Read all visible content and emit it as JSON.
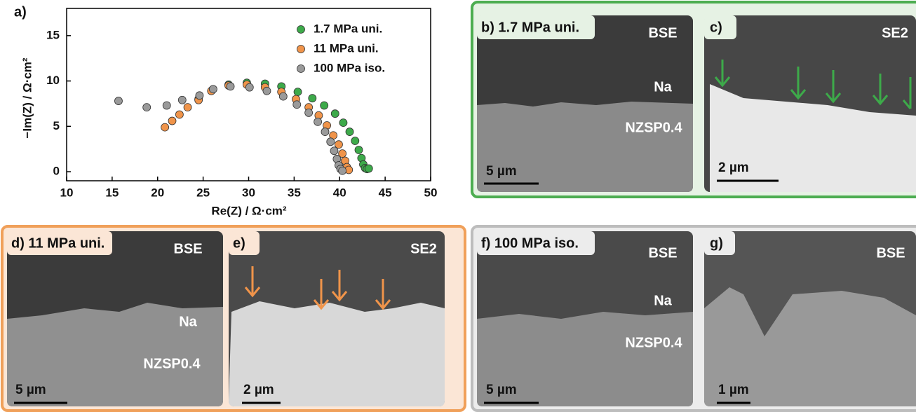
{
  "chart_data": {
    "type": "scatter",
    "panel_label": "a)",
    "x_label": "Re(Z) / Ω·cm²",
    "y_label": "−Im(Z) / Ω·cm²",
    "xlim": [
      10,
      50
    ],
    "xticks": [
      10,
      15,
      20,
      25,
      30,
      35,
      40,
      45,
      50
    ],
    "ylim": [
      -1,
      18
    ],
    "yticks": [
      0,
      5,
      10,
      15
    ],
    "legend": "upper right",
    "series": [
      {
        "name": "1.7 MPa uni.",
        "color": "#3daa4a",
        "x": [
          24.5,
          26.0,
          27.8,
          29.8,
          31.8,
          33.6,
          35.4,
          37.0,
          38.3,
          39.5,
          40.4,
          41.1,
          41.7,
          42.1,
          42.4,
          42.6,
          42.8,
          43.0,
          43.2
        ],
        "values": [
          8.0,
          9.0,
          9.6,
          9.8,
          9.7,
          9.4,
          8.8,
          8.1,
          7.3,
          6.4,
          5.4,
          4.4,
          3.4,
          2.4,
          1.5,
          0.8,
          0.4,
          0.3,
          0.35
        ]
      },
      {
        "name": "11 MPa  uni.",
        "color": "#f0944a",
        "x": [
          20.8,
          21.6,
          22.4,
          23.3,
          24.5,
          25.9,
          27.8,
          29.8,
          31.8,
          33.6,
          35.2,
          36.6,
          37.7,
          38.6,
          39.3,
          39.9,
          40.3,
          40.6,
          40.8,
          41.0
        ],
        "values": [
          4.9,
          5.6,
          6.3,
          7.1,
          7.9,
          8.9,
          9.5,
          9.6,
          9.3,
          8.8,
          8.0,
          7.1,
          6.2,
          5.1,
          4.0,
          3.0,
          2.0,
          1.2,
          0.5,
          0.2
        ]
      },
      {
        "name": "100 MPa iso.",
        "color": "#9a9a9a",
        "x": [
          15.7,
          18.8,
          21.0,
          22.7,
          24.6,
          26.1,
          28.0,
          30.1,
          32.0,
          33.8,
          35.3,
          36.6,
          37.6,
          38.4,
          39.0,
          39.4,
          39.7,
          39.9,
          40.1,
          40.3
        ],
        "values": [
          7.8,
          7.1,
          7.3,
          7.9,
          8.4,
          9.1,
          9.4,
          9.3,
          8.9,
          8.3,
          7.4,
          6.5,
          5.5,
          4.4,
          3.3,
          2.3,
          1.4,
          0.7,
          0.3,
          0.1
        ]
      }
    ]
  },
  "panels": [
    {
      "label": "b) 1.7 MPa uni.",
      "detector": "BSE",
      "phases": [
        "Na",
        "NZSP0.4"
      ],
      "scale_bar": "5 µm"
    },
    {
      "label": "c)",
      "detector": "SE2",
      "scale_bar": "2 µm"
    },
    {
      "label": "d) 11 MPa uni.",
      "detector": "BSE",
      "phases": [
        "Na",
        "NZSP0.4"
      ],
      "scale_bar": "5 µm"
    },
    {
      "label": "e)",
      "detector": "SE2",
      "scale_bar": "2 µm"
    },
    {
      "label": "f) 100 MPa iso.",
      "detector": "BSE",
      "phases": [
        "Na",
        "NZSP0.4"
      ],
      "scale_bar": "5 µm"
    },
    {
      "label": "g)",
      "detector": "BSE",
      "scale_bar": "1 µm"
    }
  ]
}
